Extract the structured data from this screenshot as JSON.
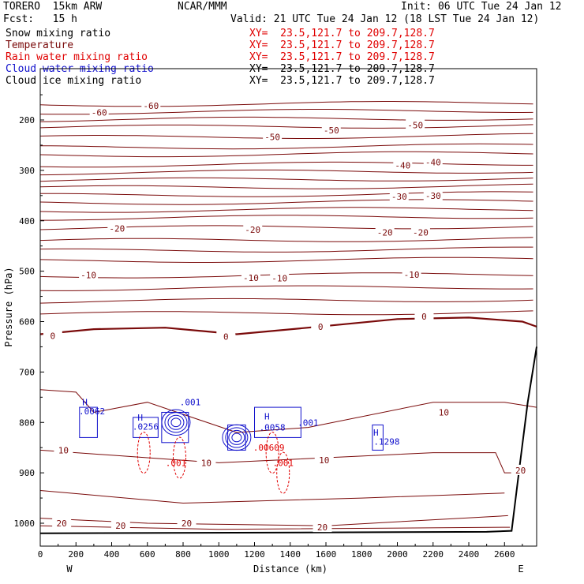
{
  "header": {
    "model": "TORERO  15km ARW",
    "org": "NCAR/MMM",
    "init": "Init: 06 UTC Tue 24 Jan 12",
    "fcst": "Fcst:   15 h",
    "valid": "Valid: 21 UTC Tue 24 Jan 12 (18 LST Tue 24 Jan 12)"
  },
  "legend": [
    {
      "label": "Snow mixing ratio",
      "color": "#000000",
      "xy": "XY=  23.5,121.7 to 209.7,128.7"
    },
    {
      "label": "Temperature",
      "color": "#7a0a0a",
      "xy": "XY=  23.5,121.7 to 209.7,128.7"
    },
    {
      "label": "Rain water mixing ratio",
      "color": "#e00000",
      "xy": "XY=  23.5,121.7 to 209.7,128.7"
    },
    {
      "label": "Cloud water mixing ratio",
      "color": "#1010cc",
      "xy": "XY=  23.5,121.7 to 209.7,128.7"
    },
    {
      "label": "Cloud ice mixing ratio",
      "color": "#000000",
      "xy": "XY=  23.5,121.7 to 209.7,128.7"
    }
  ],
  "colors": {
    "temperature": "#7a0a0a",
    "rain": "#e00000",
    "cloud_water": "#1010cc",
    "terrain": "#000000"
  },
  "chart_data": {
    "type": "cross-section",
    "xlabel": "Distance (km)",
    "ylabel": "Pressure (hPa)",
    "xlim": [
      0,
      2780
    ],
    "ylim": [
      1050,
      100
    ],
    "x_ticks": [
      0,
      200,
      400,
      600,
      800,
      1000,
      1200,
      1400,
      1600,
      1800,
      2000,
      2200,
      2400,
      2600
    ],
    "y_ticks": [
      200,
      300,
      400,
      500,
      600,
      700,
      800,
      900,
      1000
    ],
    "x_end_labels": {
      "left": "W",
      "right": "E"
    },
    "temperature_isotherms": [
      {
        "value": -60,
        "pressure": 180
      },
      {
        "value": -50,
        "pressure": 235
      },
      {
        "value": -40,
        "pressure": 290
      },
      {
        "value": -30,
        "pressure": 350
      },
      {
        "value": -20,
        "pressure": 415
      },
      {
        "value": -10,
        "pressure": 510
      },
      {
        "value": 0,
        "pressure": 620
      },
      {
        "value": 10,
        "pressure": 820
      },
      {
        "value": 20,
        "pressure": 1000
      }
    ],
    "temperature_labels": [
      {
        "text": "-60",
        "x": 330,
        "p": 185
      },
      {
        "text": "-60",
        "x": 620,
        "p": 172
      },
      {
        "text": "-50",
        "x": 1300,
        "p": 234
      },
      {
        "text": "-50",
        "x": 1630,
        "p": 220
      },
      {
        "text": "-50",
        "x": 2100,
        "p": 210
      },
      {
        "text": "-40",
        "x": 2030,
        "p": 290
      },
      {
        "text": "-40",
        "x": 2200,
        "p": 284
      },
      {
        "text": "-30",
        "x": 2010,
        "p": 352
      },
      {
        "text": "-30",
        "x": 2200,
        "p": 350
      },
      {
        "text": "-20",
        "x": 430,
        "p": 415
      },
      {
        "text": "-20",
        "x": 1190,
        "p": 418
      },
      {
        "text": "-20",
        "x": 1930,
        "p": 423
      },
      {
        "text": "-20",
        "x": 2130,
        "p": 423
      },
      {
        "text": "-10",
        "x": 270,
        "p": 508
      },
      {
        "text": "-10",
        "x": 1180,
        "p": 513
      },
      {
        "text": "-10",
        "x": 1340,
        "p": 514
      },
      {
        "text": "-10",
        "x": 2080,
        "p": 507
      },
      {
        "text": "0",
        "x": 70,
        "p": 628
      },
      {
        "text": "0",
        "x": 1040,
        "p": 630
      },
      {
        "text": "0",
        "x": 1570,
        "p": 610
      },
      {
        "text": "0",
        "x": 2150,
        "p": 590
      },
      {
        "text": "10",
        "x": 130,
        "p": 855
      },
      {
        "text": "10",
        "x": 930,
        "p": 880
      },
      {
        "text": "10",
        "x": 1590,
        "p": 875
      },
      {
        "text": "10",
        "x": 2260,
        "p": 780
      },
      {
        "text": "20",
        "x": 120,
        "p": 1000
      },
      {
        "text": "20",
        "x": 450,
        "p": 1005
      },
      {
        "text": "20",
        "x": 820,
        "p": 1000
      },
      {
        "text": "20",
        "x": 1580,
        "p": 1008
      },
      {
        "text": "20",
        "x": 2690,
        "p": 895
      }
    ],
    "cloud_water_labels": [
      {
        "text": "H",
        "x": 250,
        "p": 760
      },
      {
        "text": ".0062",
        "x": 290,
        "p": 778
      },
      {
        "text": "H",
        "x": 560,
        "p": 790
      },
      {
        "text": ".0256",
        "x": 590,
        "p": 808
      },
      {
        "text": ".001",
        "x": 840,
        "p": 760
      },
      {
        "text": "H",
        "x": 1270,
        "p": 788
      },
      {
        "text": ".0058",
        "x": 1300,
        "p": 810
      },
      {
        "text": ".001",
        "x": 1500,
        "p": 800
      },
      {
        "text": "H",
        "x": 1880,
        "p": 820
      },
      {
        "text": ".1298",
        "x": 1940,
        "p": 838
      }
    ],
    "rain_labels": [
      {
        "text": ".001",
        "x": 760,
        "p": 880
      },
      {
        "text": ".00609",
        "x": 1280,
        "p": 850
      },
      {
        "text": ".001",
        "x": 1360,
        "p": 880
      }
    ],
    "terrain": [
      [
        0,
        1020
      ],
      [
        2500,
        1017
      ],
      [
        2640,
        1015
      ],
      [
        2680,
        900
      ],
      [
        2730,
        760
      ],
      [
        2780,
        650
      ]
    ]
  }
}
